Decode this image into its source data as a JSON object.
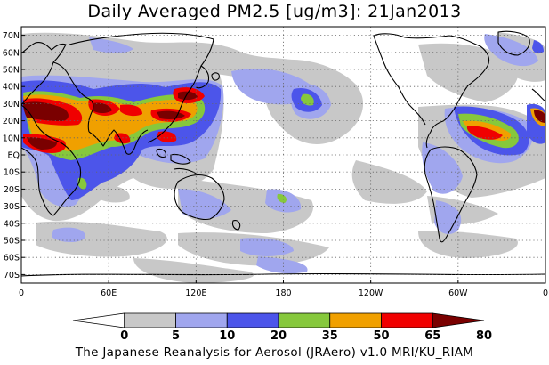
{
  "title": "Daily Averaged PM2.5 [ug/m3]: 21Jan2013",
  "footer": "The Japanese Reanalysis for Aerosol (JRAero) v1.0 MRI/KU_RIAM",
  "map": {
    "lat_labels": [
      "70N",
      "60N",
      "50N",
      "40N",
      "30N",
      "20N",
      "10N",
      "EQ",
      "10S",
      "20S",
      "30S",
      "40S",
      "50S",
      "60S",
      "70S"
    ],
    "lat_values": [
      70,
      60,
      50,
      40,
      30,
      20,
      10,
      0,
      -10,
      -20,
      -30,
      -40,
      -50,
      -60,
      -70
    ],
    "lon_labels": [
      "0",
      "60E",
      "120E",
      "180",
      "120W",
      "60W",
      "0"
    ],
    "lon_values": [
      0,
      60,
      120,
      180,
      240,
      300,
      360
    ],
    "lat_range": [
      -75,
      75
    ],
    "lon_range": [
      0,
      360
    ]
  },
  "colorbar": {
    "levels": [
      "0",
      "5",
      "10",
      "20",
      "35",
      "50",
      "65",
      "80"
    ],
    "colors": [
      "#ffffff",
      "#c8c8c8",
      "#a0a6ee",
      "#4c55ea",
      "#86c83c",
      "#f0a000",
      "#f00000",
      "#7a0000"
    ]
  },
  "fields": {
    "gray": "#c8c8c8",
    "lightblue": "#a0a6ee",
    "blue": "#4c55ea",
    "green": "#86c83c",
    "orange": "#f0a000",
    "red": "#f00000",
    "darkred": "#7a0000"
  }
}
